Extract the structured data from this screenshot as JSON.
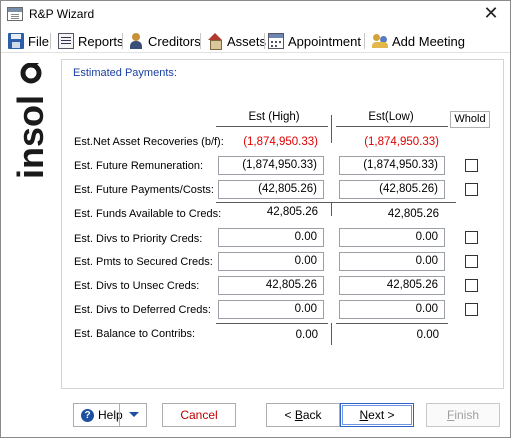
{
  "window": {
    "title": "R&P Wizard",
    "close_glyph": "✕"
  },
  "toolbar": {
    "items": [
      {
        "label": "File",
        "icon": "save-disk-icon"
      },
      {
        "label": "Reports",
        "icon": "report-icon"
      },
      {
        "label": "Creditors",
        "icon": "person-icon"
      },
      {
        "label": "Assets",
        "icon": "house-icon"
      },
      {
        "label": "Appointment",
        "icon": "calendar-icon"
      },
      {
        "label": "Add Meeting",
        "icon": "people-icon"
      }
    ]
  },
  "logo": {
    "text": "insol6",
    "color": "#1a1a1a"
  },
  "section": {
    "title": "Estimated Payments:"
  },
  "columns": {
    "high": "Est (High)",
    "low": "Est(Low)",
    "whold": "Whold"
  },
  "rows": [
    {
      "label": "Est.Net Asset Recoveries (b/f):",
      "high": "(1,874,950.33)",
      "low": "(1,874,950.33)"
    },
    {
      "label": "Est. Future Remuneration:",
      "high": "(1,874,950.33)",
      "low": "(1,874,950.33)"
    },
    {
      "label": "Est. Future Payments/Costs:",
      "high": "(42,805.26)",
      "low": "(42,805.26)"
    },
    {
      "label": "Est. Funds Available to Creds:",
      "high": "42,805.26",
      "low": "42,805.26"
    },
    {
      "label": "Est. Divs to Priority Creds:",
      "high": "0.00",
      "low": "0.00"
    },
    {
      "label": "Est. Pmts to Secured Creds:",
      "high": "0.00",
      "low": "0.00"
    },
    {
      "label": "Est. Divs to Unsec Creds:",
      "high": "42,805.26",
      "low": "42,805.26"
    },
    {
      "label": "Est. Divs to Deferred Creds:",
      "high": "0.00",
      "low": "0.00"
    },
    {
      "label": "Est. Balance to Contribs:",
      "high": "0.00",
      "low": "0.00"
    }
  ],
  "buttons": {
    "help": "Help",
    "cancel": "Cancel",
    "back_prefix": "< ",
    "back_key": "B",
    "back_rest": "ack",
    "next_key": "N",
    "next_suffix": "ext >",
    "finish_key": "F",
    "finish_rest": "inish"
  },
  "colors": {
    "negative": "#e00000",
    "section_title": "#1a3fa0",
    "cancel_text": "#c00000"
  }
}
